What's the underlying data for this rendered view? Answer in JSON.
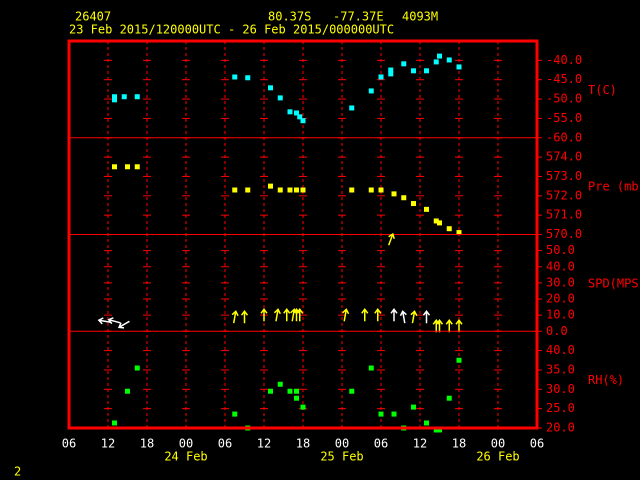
{
  "header": {
    "station": "26407",
    "lat": "80.37S",
    "lon": "-77.37E",
    "elev": "4093M",
    "period": "23 Feb 2015/120000UTC - 26 Feb 2015/000000UTC",
    "page": "2"
  },
  "chart_data": [
    {
      "type": "scatter",
      "y_label": "T(C)",
      "ylim": [
        -60,
        -35
      ],
      "yticks": [
        {
          "value": -60,
          "label": "-60.0"
        },
        {
          "value": -55,
          "label": "-55.0"
        },
        {
          "value": -50,
          "label": "-50.0"
        },
        {
          "value": -45,
          "label": "-45.0"
        },
        {
          "value": -40,
          "label": "-40.0"
        }
      ],
      "series": [
        {
          "color": "#00ffff",
          "x": [
            13,
            13,
            14.5,
            16.5,
            31.5,
            33.5,
            37,
            38.5,
            40,
            41,
            41.5,
            42,
            49.5,
            52.5,
            54,
            55.5,
            55.5,
            57.5,
            59,
            61,
            62.5,
            63,
            64.5,
            66
          ],
          "values": [
            -49.4,
            -50.2,
            -49.4,
            -49.4,
            -44.3,
            -44.5,
            -47.1,
            -49.7,
            -53.3,
            -53.6,
            -54.6,
            -55.6,
            -52.3,
            -47.9,
            -44.3,
            -42.5,
            -43.5,
            -40.9,
            -42.7,
            -42.7,
            -40.4,
            -38.9,
            -39.9,
            -41.7
          ]
        }
      ]
    },
    {
      "type": "scatter",
      "y_label": "Pre (mb)",
      "ylim": [
        570,
        575
      ],
      "yticks": [
        {
          "value": 570,
          "label": "570.0"
        },
        {
          "value": 571,
          "label": "571.0"
        },
        {
          "value": 572,
          "label": "572.0"
        },
        {
          "value": 573,
          "label": "573.0"
        },
        {
          "value": 574,
          "label": "574.0"
        }
      ],
      "series": [
        {
          "color": "#ffff00",
          "x": [
            13,
            15,
            16.5,
            31.5,
            33.5,
            37,
            38.5,
            40,
            41,
            42,
            49.5,
            52.5,
            54,
            56,
            57.5,
            59,
            61,
            62.5,
            63,
            64.5,
            66
          ],
          "values": [
            573.5,
            573.5,
            573.5,
            572.3,
            572.3,
            572.5,
            572.3,
            572.3,
            572.3,
            572.3,
            572.3,
            572.3,
            572.3,
            572.1,
            571.9,
            571.6,
            571.3,
            570.7,
            570.6,
            570.3,
            570.1
          ]
        }
      ]
    },
    {
      "type": "wind",
      "y_label": "SPD(MPS)",
      "ylim": [
        0,
        60
      ],
      "yticks": [
        {
          "value": 0,
          "label": "0.0"
        },
        {
          "value": 10,
          "label": "10.0"
        },
        {
          "value": 20,
          "label": "20.0"
        },
        {
          "value": 30,
          "label": "30.0"
        },
        {
          "value": 40,
          "label": "40.0"
        },
        {
          "value": 50,
          "label": "50.0"
        }
      ],
      "series": [
        {
          "color": "#ffffff",
          "x": [
            11.5,
            13,
            14.5,
            56,
            57.5,
            61
          ],
          "values": [
            3.1,
            3.1,
            1.2,
            6.8,
            5.6,
            5.6
          ],
          "directions": [
            280,
            285,
            240,
            0,
            350,
            0
          ]
        },
        {
          "color": "#ffff00",
          "x": [
            31.5,
            33,
            36,
            38,
            39.5,
            40.5,
            41,
            41.5,
            48.5,
            51.5,
            53.5,
            55.5,
            59,
            62.5,
            63,
            64.5,
            66
          ],
          "values": [
            5.6,
            5.6,
            6.8,
            6.8,
            6.8,
            6.8,
            6.8,
            6.8,
            6.8,
            6.8,
            6.8,
            53.7,
            5.6,
            0,
            0,
            0,
            0
          ],
          "directions": [
            10,
            0,
            0,
            10,
            0,
            10,
            0,
            0,
            10,
            0,
            0,
            20,
            10,
            0,
            0,
            0,
            0
          ]
        }
      ]
    },
    {
      "type": "scatter",
      "y_label": "RH(%)",
      "ylim": [
        20,
        45
      ],
      "yticks": [
        {
          "value": 20,
          "label": "20.0"
        },
        {
          "value": 25,
          "label": "25.0"
        },
        {
          "value": 30,
          "label": "30.0"
        },
        {
          "value": 35,
          "label": "35.0"
        },
        {
          "value": 40,
          "label": "40.0"
        }
      ],
      "series": [
        {
          "color": "#00ff00",
          "x": [
            13,
            15,
            16.5,
            31.5,
            33.5,
            37,
            38.5,
            40,
            41,
            41,
            42,
            49.5,
            52.5,
            54,
            56,
            57.5,
            59,
            61,
            62.5,
            63,
            64.5,
            66
          ],
          "values": [
            21.3,
            29.5,
            35.5,
            23.6,
            20,
            29.5,
            31.3,
            29.5,
            29.5,
            27.7,
            25.4,
            29.5,
            35.5,
            23.6,
            23.6,
            20,
            25.4,
            21.3,
            19.5,
            19.5,
            27.7,
            37.5
          ]
        }
      ],
      "xlim": [
        6,
        78
      ],
      "xticks": [
        {
          "value": 6,
          "label": "06"
        },
        {
          "value": 12,
          "label": "12"
        },
        {
          "value": 18,
          "label": "18"
        },
        {
          "value": 24,
          "label": "00"
        },
        {
          "value": 30,
          "label": "06"
        },
        {
          "value": 36,
          "label": "12"
        },
        {
          "value": 42,
          "label": "18"
        },
        {
          "value": 48,
          "label": "00"
        },
        {
          "value": 54,
          "label": "06"
        },
        {
          "value": 60,
          "label": "12"
        },
        {
          "value": 66,
          "label": "18"
        },
        {
          "value": 72,
          "label": "00"
        },
        {
          "value": 78,
          "label": "06"
        }
      ],
      "date_ticks": [
        {
          "value": 24,
          "label": "24 Feb"
        },
        {
          "value": 48,
          "label": "25 Feb"
        },
        {
          "value": 72,
          "label": "26 Feb"
        }
      ]
    }
  ]
}
